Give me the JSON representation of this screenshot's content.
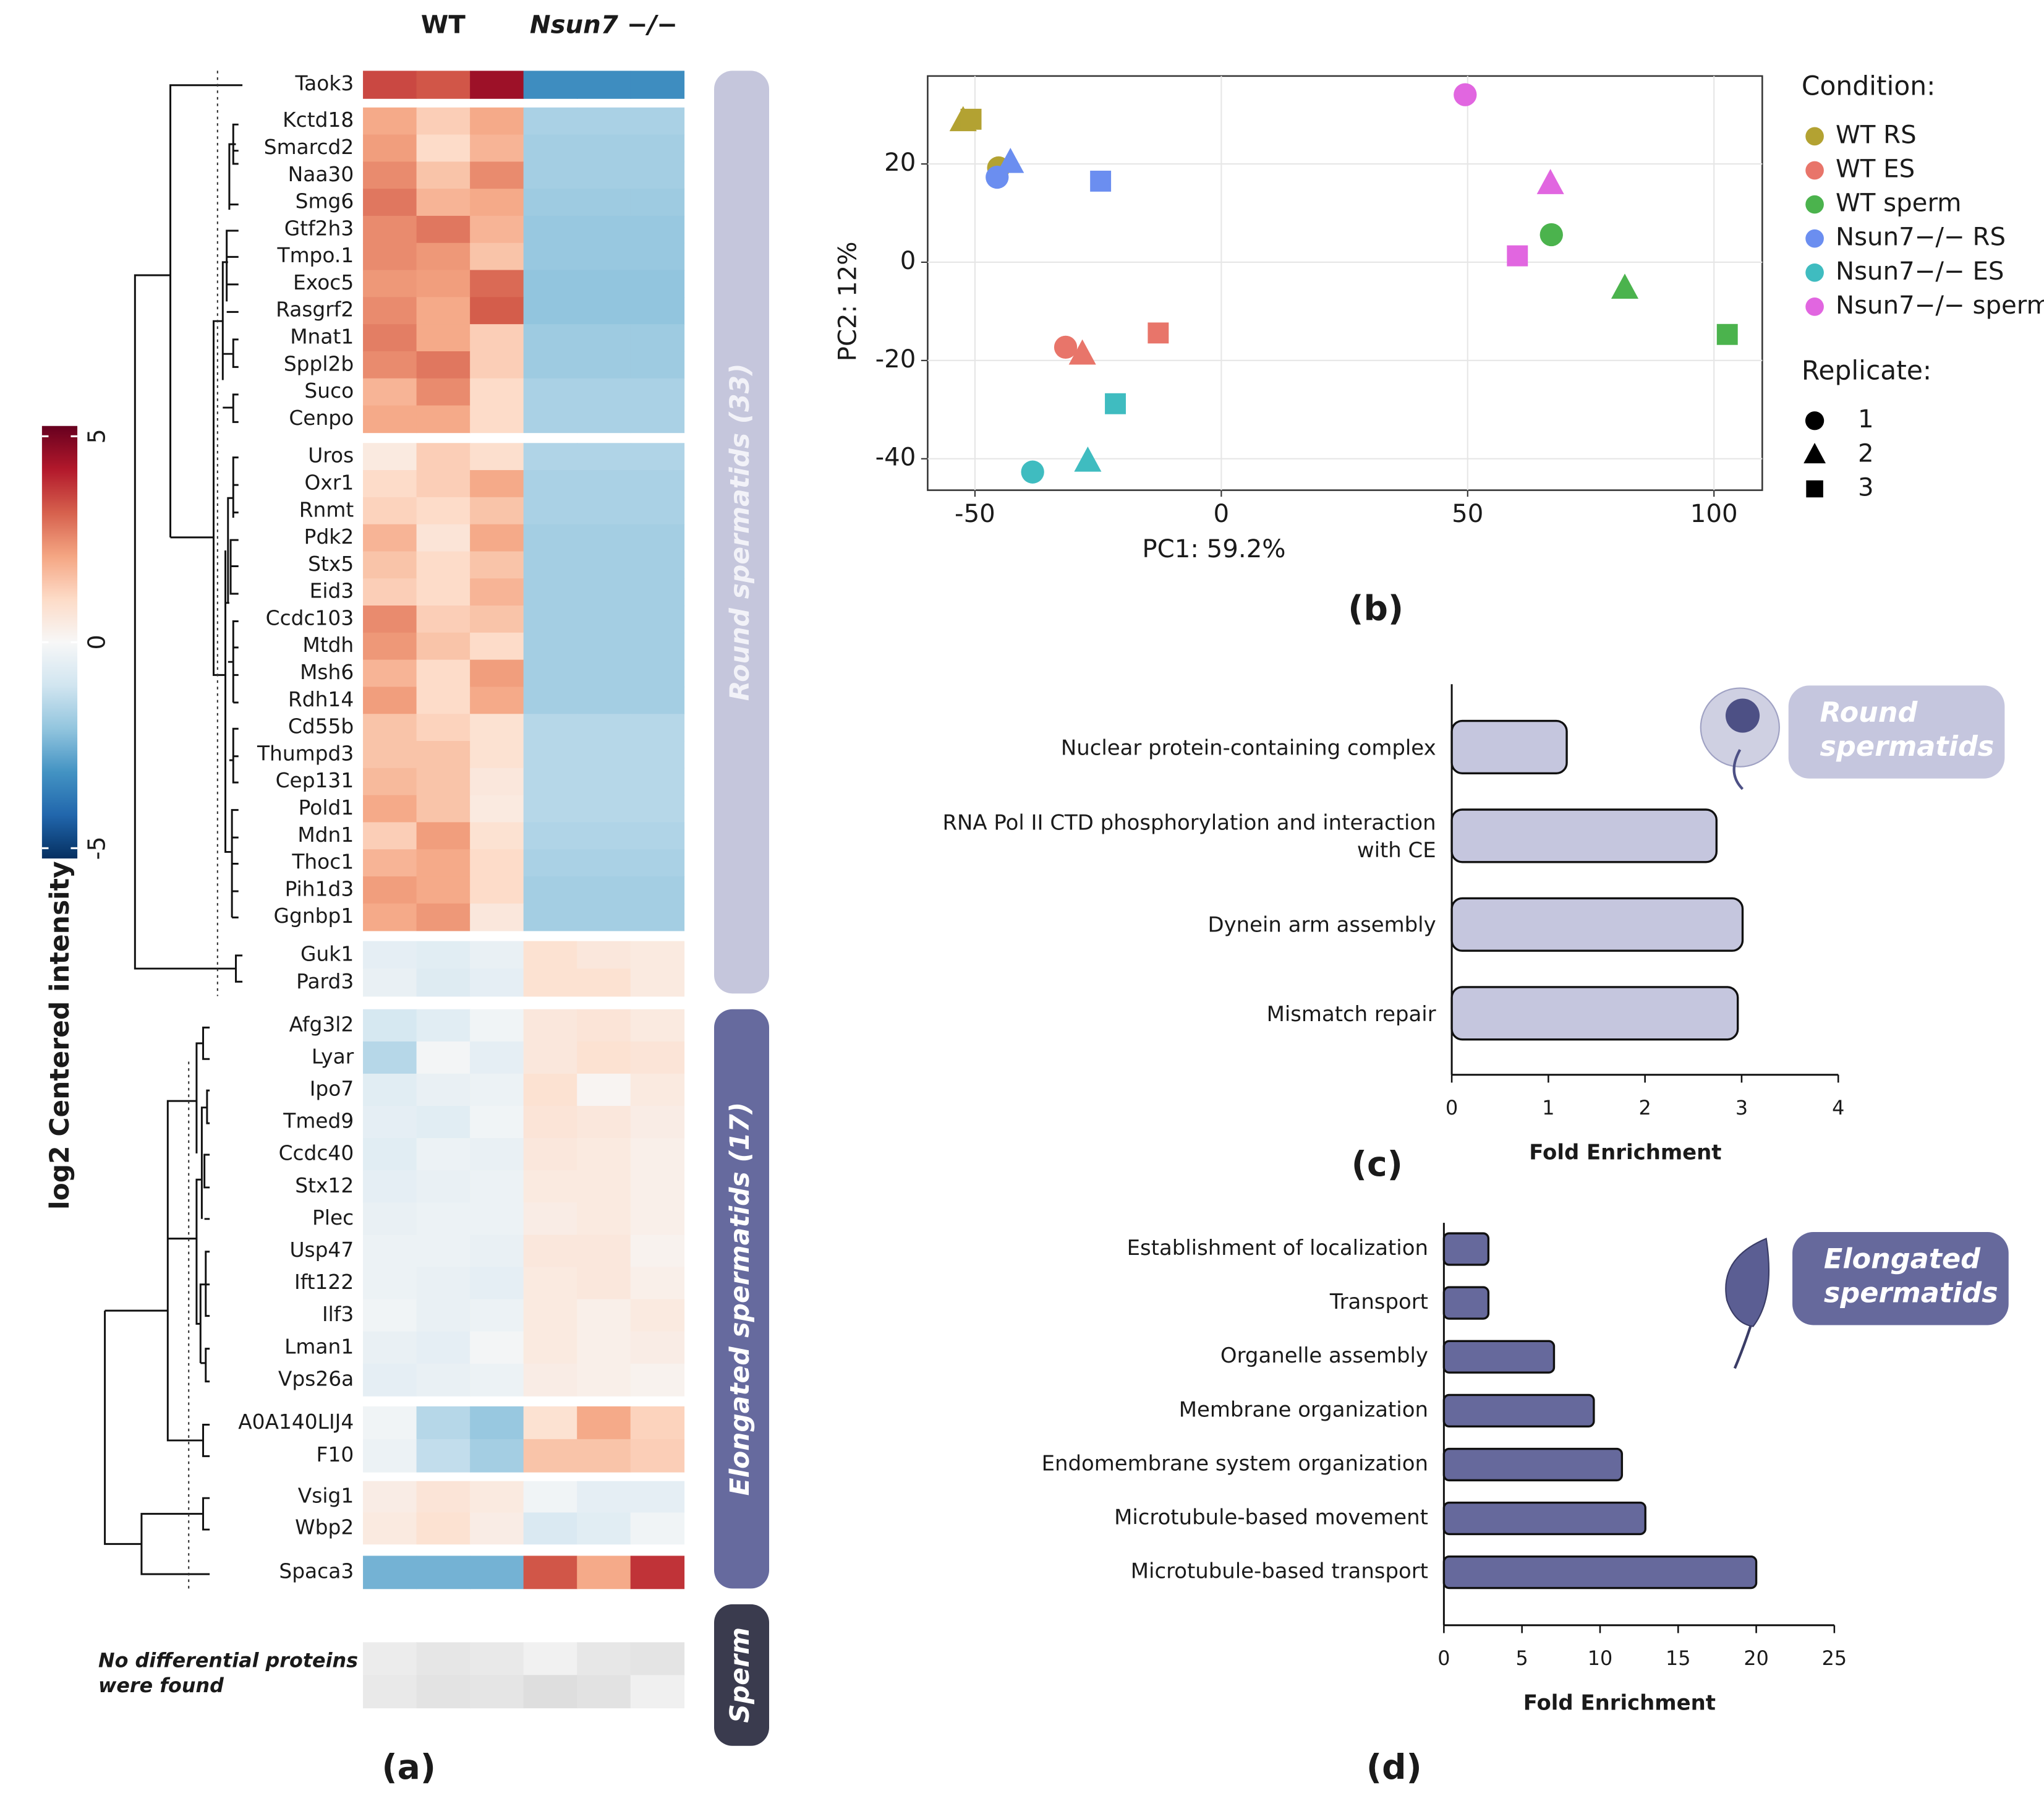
{
  "chart_data": [
    {
      "type": "heatmap",
      "panel": "(a)",
      "column_groups": [
        "WT",
        "Nsun7 −/−"
      ],
      "rows": [
        "Taok3",
        "Kctd18",
        "Smarcd2",
        "Naa30",
        "Smg6",
        "Gtf2h3",
        "Tmpo.1",
        "Exoc5",
        "Rasgrf2",
        "Mnat1",
        "Sppl2b",
        "Suco",
        "Cenpo",
        "Uros",
        "Oxr1",
        "Rnmt",
        "Pdk2",
        "Stx5",
        "Eid3",
        "Ccdc103",
        "Mtdh",
        "Msh6",
        "Rdh14",
        "Cd55b",
        "Thumpd3",
        "Cep131",
        "Pold1",
        "Mdn1",
        "Thoc1",
        "Pih1d3",
        "Ggnbp1",
        "Guk1",
        "Pard3",
        "Afg3l2",
        "Lyar",
        "Ipo7",
        "Tmed9",
        "Ccdc40",
        "Stx12",
        "Plec",
        "Usp47",
        "Ift122",
        "Ilf3",
        "Lman1",
        "Vps26a",
        "A0A140LIJ4",
        "F10",
        "Vsig1",
        "Wbp2",
        "Spaca3"
      ],
      "values": [
        [
          3.5,
          3.3,
          4.5,
          -3.3,
          -3.3,
          -3.3
        ],
        [
          2,
          1.3,
          2,
          -1.7,
          -1.7,
          -1.7
        ],
        [
          2.2,
          1,
          1.8,
          -1.8,
          -1.8,
          -1.8
        ],
        [
          2.5,
          1.5,
          2.5,
          -1.8,
          -1.8,
          -1.8
        ],
        [
          2.8,
          1.8,
          2,
          -1.9,
          -1.9,
          -1.9
        ],
        [
          2.5,
          2.8,
          1.8,
          -2,
          -2,
          -2
        ],
        [
          2.5,
          2.3,
          1.5,
          -2,
          -2,
          -2
        ],
        [
          2.3,
          2.2,
          3,
          -2.1,
          -2.1,
          -2.1
        ],
        [
          2.5,
          2,
          3.2,
          -2.1,
          -2.1,
          -2.1
        ],
        [
          2.7,
          2,
          1.3,
          -1.9,
          -1.9,
          -1.9
        ],
        [
          2.5,
          2.8,
          1.3,
          -1.9,
          -1.9,
          -1.9
        ],
        [
          1.8,
          2.5,
          1,
          -1.7,
          -1.7,
          -1.7
        ],
        [
          2,
          2,
          1,
          -1.7,
          -1.7,
          -1.7
        ],
        [
          0.5,
          1.3,
          0.9,
          -1.6,
          -1.6,
          -1.6
        ],
        [
          1,
          1.3,
          2,
          -1.7,
          -1.7,
          -1.7
        ],
        [
          1.2,
          1,
          1.5,
          -1.7,
          -1.7,
          -1.7
        ],
        [
          1.8,
          0.7,
          2,
          -1.8,
          -1.8,
          -1.8
        ],
        [
          1.5,
          1,
          1.5,
          -1.8,
          -1.8,
          -1.8
        ],
        [
          1.3,
          1,
          1.8,
          -1.8,
          -1.8,
          -1.8
        ],
        [
          2.5,
          1.3,
          1.5,
          -1.8,
          -1.8,
          -1.8
        ],
        [
          2.3,
          1.5,
          1,
          -1.8,
          -1.8,
          -1.8
        ],
        [
          1.8,
          1,
          2.2,
          -1.8,
          -1.8,
          -1.8
        ],
        [
          2.2,
          1,
          2,
          -1.8,
          -1.8,
          -1.8
        ],
        [
          1.5,
          1.2,
          0.8,
          -1.5,
          -1.5,
          -1.5
        ],
        [
          1.5,
          1.5,
          0.8,
          -1.5,
          -1.5,
          -1.5
        ],
        [
          1.7,
          1.5,
          0.6,
          -1.5,
          -1.5,
          -1.5
        ],
        [
          2,
          1.5,
          0.5,
          -1.5,
          -1.5,
          -1.5
        ],
        [
          1.3,
          2.2,
          0.8,
          -1.6,
          -1.6,
          -1.6
        ],
        [
          1.8,
          2,
          1,
          -1.7,
          -1.7,
          -1.7
        ],
        [
          2.2,
          2,
          1,
          -1.8,
          -1.8,
          -1.8
        ],
        [
          2,
          2.3,
          0.6,
          -1.8,
          -1.8,
          -1.8
        ],
        [
          -0.5,
          -0.6,
          -0.4,
          0.8,
          0.6,
          0.5
        ],
        [
          -0.4,
          -0.7,
          -0.5,
          0.8,
          0.8,
          0.5
        ],
        [
          -0.9,
          -0.6,
          -0.2,
          0.6,
          0.7,
          0.5
        ],
        [
          -1.5,
          -0.1,
          -0.5,
          0.6,
          0.8,
          0.7
        ],
        [
          -0.6,
          -0.4,
          -0.3,
          0.8,
          0.1,
          0.5
        ],
        [
          -0.5,
          -0.6,
          -0.2,
          0.7,
          0.6,
          0.4
        ],
        [
          -0.6,
          -0.3,
          -0.4,
          0.6,
          0.5,
          0.3
        ],
        [
          -0.5,
          -0.4,
          -0.3,
          0.5,
          0.5,
          0.3
        ],
        [
          -0.4,
          -0.3,
          -0.3,
          0.4,
          0.5,
          0.3
        ],
        [
          -0.3,
          -0.3,
          -0.4,
          0.6,
          0.6,
          0.2
        ],
        [
          -0.3,
          -0.4,
          -0.5,
          0.5,
          0.6,
          0.3
        ],
        [
          -0.2,
          -0.4,
          -0.3,
          0.5,
          0.3,
          0.5
        ],
        [
          -0.4,
          -0.5,
          -0.1,
          0.5,
          0.3,
          0.4
        ],
        [
          -0.5,
          -0.4,
          -0.3,
          0.4,
          0.3,
          0.2
        ],
        [
          -0.2,
          -1.5,
          -2,
          0.8,
          2,
          1.2
        ],
        [
          -0.3,
          -1.3,
          -1.8,
          1.5,
          1.5,
          1.3
        ],
        [
          0.4,
          0.7,
          0.5,
          -0.2,
          -0.5,
          -0.5
        ],
        [
          0.5,
          0.8,
          0.4,
          -0.8,
          -0.6,
          -0.2
        ],
        [
          -2.5,
          -2.5,
          -2.5,
          3.3,
          2,
          3.8
        ]
      ],
      "row_groups": [
        "Round spermatids (33)",
        "Elongated spermatids (17)",
        "Sperm"
      ],
      "annotation": "No differential proteins were found",
      "colorbar_label": "log2 Centered intensity",
      "colormap": "RdBu",
      "clim": [
        -5.25,
        5.25
      ],
      "cticks": [
        -5,
        0,
        5
      ]
    },
    {
      "type": "scatter",
      "panel": "(b)",
      "xlabel": "PC1: 59.2%",
      "ylabel": "PC2: 12%",
      "legend_title": "Condition:",
      "shape_legend_title": "Replicate:",
      "replicates": [
        1,
        2,
        3
      ],
      "shapes": [
        "circle",
        "triangle",
        "square"
      ],
      "xlim": [
        -59.6,
        109.8
      ],
      "xticks": [
        -50,
        0,
        50,
        100
      ],
      "ylim": [
        -46.4,
        37.9
      ],
      "yticks": [
        -40,
        -20,
        0,
        20
      ],
      "grid": true,
      "series": [
        {
          "name": "WT RS",
          "color": "#b3a232",
          "x": [
            -45.2,
            -52.4,
            -50.8
          ],
          "values": [
            19.2,
            28.8,
            29.1
          ]
        },
        {
          "name": "WT ES",
          "color": "#e8756a",
          "x": [
            -31.6,
            -28.2,
            -12.8
          ],
          "values": [
            -17.3,
            -18.7,
            -14.4
          ]
        },
        {
          "name": "WT sperm",
          "color": "#4bb34d",
          "x": [
            67,
            81.9,
            102.7
          ],
          "values": [
            5.6,
            -5.3,
            -14.7
          ]
        },
        {
          "name": "Nsun7−/− RS",
          "color": "#6b8ef0",
          "x": [
            -45.5,
            -42.8,
            -24.5
          ],
          "values": [
            17.3,
            20.3,
            16.5
          ]
        },
        {
          "name": "Nsun7−/− ES",
          "color": "#3fbcc0",
          "x": [
            -38.3,
            -27.1,
            -21.5
          ],
          "values": [
            -42.7,
            -40.5,
            -28.8
          ]
        },
        {
          "name": "Nsun7−/− sperm",
          "color": "#e166e0",
          "x": [
            49.5,
            66.8,
            60.1
          ],
          "values": [
            34.1,
            16,
            1.3
          ]
        }
      ]
    },
    {
      "type": "hbar",
      "panel": "(c)",
      "badge": [
        "Round",
        "spermatids"
      ],
      "color": "#c5c6de",
      "xlabel": "Fold Enrichment",
      "categories": [
        "Nuclear protein-containing complex",
        "RNA Pol II CTD phosphorylation and interaction with CE",
        "Dynein arm assembly",
        "Mismatch repair"
      ],
      "values": [
        1.19,
        2.74,
        3.01,
        2.96
      ],
      "xlim": [
        0,
        4
      ],
      "xticks": [
        0,
        1,
        2,
        3,
        4
      ]
    },
    {
      "type": "hbar",
      "panel": "(d)",
      "badge": [
        "Elongated",
        "spermatids"
      ],
      "color": "#66699c",
      "xlabel": "Fold Enrichment",
      "categories": [
        "Establishment of localization",
        "Transport",
        "Organelle assembly",
        "Membrane organization",
        "Endomembrane system organization",
        "Microtubule-based movement",
        "Microtubule-based transport"
      ],
      "values": [
        2.85,
        2.85,
        7.05,
        9.6,
        11.4,
        12.9,
        20
      ],
      "xlim": [
        0,
        25
      ],
      "xticks": [
        0,
        5,
        10,
        15,
        20,
        25
      ]
    }
  ]
}
